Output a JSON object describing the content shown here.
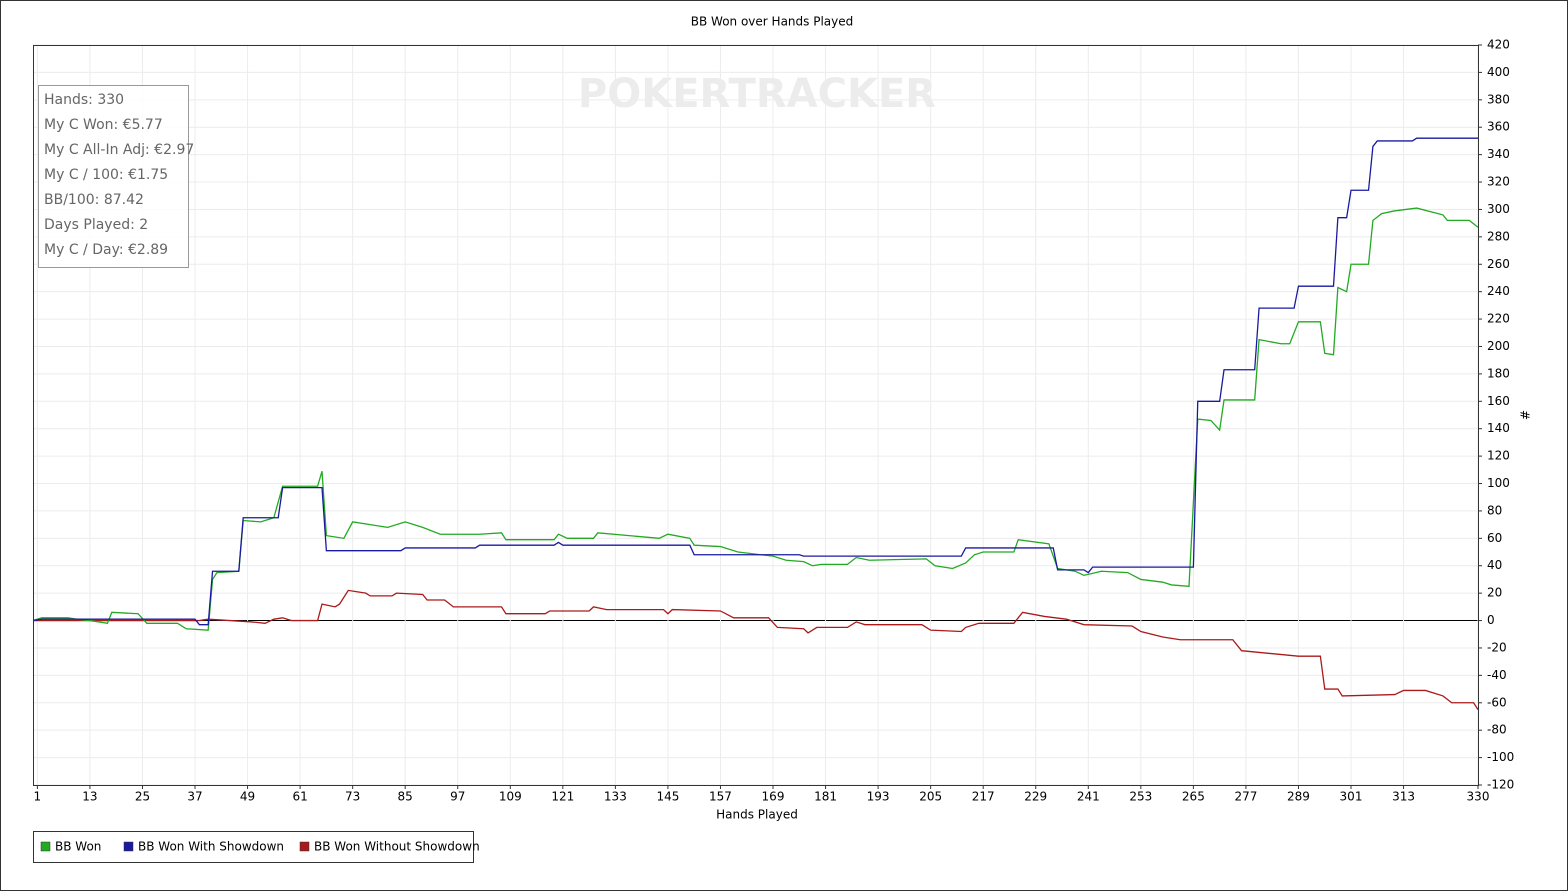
{
  "chart_data": {
    "type": "line",
    "title": "BB Won over Hands Played",
    "x_label": "Hands Played",
    "y_label": "#",
    "watermark": "POKERTRACKER",
    "info_box": [
      "Hands: 330",
      "My C Won: €5.77",
      "My C All-In Adj: €2.97",
      "My C / 100: €1.75",
      "BB/100: 87.42",
      "Days Played: 2",
      "My C / Day: €2.89"
    ],
    "xlim": [
      0,
      330
    ],
    "ylim": [
      -120,
      420
    ],
    "grid": true,
    "xticks": [
      1,
      13,
      25,
      37,
      49,
      61,
      73,
      85,
      97,
      109,
      121,
      133,
      145,
      157,
      169,
      181,
      193,
      205,
      217,
      229,
      241,
      253,
      265,
      277,
      289,
      301,
      313,
      330
    ],
    "yticks": [
      -120,
      -100,
      -80,
      -60,
      -40,
      -20,
      0,
      20,
      40,
      60,
      80,
      100,
      120,
      140,
      160,
      180,
      200,
      220,
      240,
      260,
      280,
      300,
      320,
      340,
      360,
      380,
      400,
      420
    ],
    "series": [
      {
        "name": "BB Won",
        "color": "#22aa22",
        "x": [
          0,
          2,
          8,
          10,
          13,
          17,
          18,
          24,
          26,
          33,
          35,
          40,
          41,
          42,
          47,
          48,
          52,
          55,
          57,
          65,
          66,
          67,
          71,
          73,
          77,
          81,
          85,
          89,
          93,
          102,
          107,
          108,
          119,
          120,
          122,
          128,
          129,
          143,
          145,
          150,
          151,
          157,
          161,
          169,
          172,
          176,
          178,
          180,
          186,
          188,
          191,
          204,
          206,
          210,
          213,
          215,
          217,
          224,
          225,
          232,
          234,
          238,
          240,
          244,
          250,
          253,
          258,
          260,
          264,
          266,
          269,
          271,
          272,
          279,
          280,
          285,
          287,
          289,
          294,
          295,
          297,
          298,
          300,
          301,
          305,
          306,
          308,
          311,
          316,
          322,
          323,
          328,
          330
        ],
        "values": [
          0,
          2,
          2,
          1,
          0,
          -2,
          6,
          5,
          -2,
          -2,
          -6,
          -7,
          30,
          35,
          36,
          73,
          72,
          75,
          98,
          98,
          109,
          62,
          60,
          72,
          70,
          68,
          72,
          68,
          63,
          63,
          64,
          59,
          59,
          63,
          60,
          60,
          64,
          60,
          63,
          60,
          55,
          54,
          50,
          47,
          44,
          43,
          40,
          41,
          41,
          46,
          44,
          45,
          40,
          38,
          42,
          48,
          50,
          50,
          59,
          56,
          38,
          36,
          33,
          36,
          35,
          30,
          28,
          26,
          25,
          147,
          146,
          139,
          161,
          161,
          205,
          202,
          202,
          218,
          218,
          195,
          194,
          243,
          240,
          260,
          260,
          292,
          297,
          299,
          301,
          296,
          292,
          292,
          287
        ]
      },
      {
        "name": "BB Won With Showdown",
        "color": "#1a1aa0",
        "x": [
          0,
          2,
          37,
          38,
          40,
          41,
          47,
          48,
          56,
          57,
          66,
          67,
          84,
          85,
          101,
          102,
          119,
          120,
          121,
          150,
          151,
          175,
          176,
          212,
          213,
          233,
          234,
          240,
          241,
          242,
          265,
          266,
          271,
          272,
          279,
          280,
          288,
          289,
          297,
          298,
          300,
          301,
          305,
          306,
          307,
          315,
          316,
          330
        ],
        "values": [
          0,
          1,
          1,
          -3,
          -3,
          36,
          36,
          75,
          75,
          97,
          97,
          51,
          51,
          53,
          53,
          55,
          55,
          57,
          55,
          55,
          48,
          48,
          47,
          47,
          53,
          53,
          37,
          37,
          35,
          39,
          39,
          160,
          160,
          183,
          183,
          228,
          228,
          244,
          244,
          294,
          294,
          314,
          314,
          346,
          350,
          350,
          352,
          352
        ]
      },
      {
        "name": "BB Won Without Showdown",
        "color": "#aa1a1a",
        "x": [
          0,
          38,
          40,
          50,
          53,
          55,
          57,
          59,
          65,
          66,
          69,
          70,
          72,
          76,
          77,
          82,
          83,
          89,
          90,
          94,
          96,
          107,
          108,
          117,
          118,
          127,
          128,
          131,
          144,
          145,
          146,
          157,
          160,
          168,
          170,
          176,
          177,
          179,
          186,
          188,
          190,
          203,
          205,
          212,
          213,
          216,
          224,
          226,
          231,
          236,
          240,
          251,
          253,
          258,
          262,
          274,
          276,
          289,
          294,
          295,
          298,
          299,
          311,
          313,
          318,
          322,
          324,
          329,
          330
        ],
        "values": [
          0,
          0,
          1,
          -1,
          -2,
          1,
          2,
          0,
          0,
          12,
          10,
          12,
          22,
          20,
          18,
          18,
          20,
          19,
          15,
          15,
          10,
          10,
          5,
          5,
          7,
          7,
          10,
          8,
          8,
          5,
          8,
          7,
          2,
          2,
          -5,
          -6,
          -9,
          -5,
          -5,
          -1,
          -3,
          -3,
          -7,
          -8,
          -5,
          -2,
          -2,
          6,
          3,
          1,
          -3,
          -4,
          -8,
          -12,
          -14,
          -14,
          -22,
          -26,
          -26,
          -50,
          -50,
          -55,
          -54,
          -51,
          -51,
          -55,
          -60,
          -60,
          -65
        ]
      }
    ]
  }
}
